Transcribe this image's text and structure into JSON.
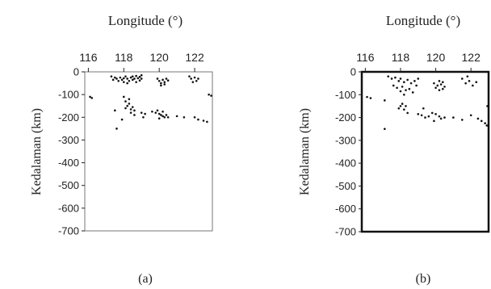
{
  "chart_data": [
    {
      "type": "scatter",
      "panel_label": "(a)",
      "xlabel": "Longitude (°)",
      "ylabel": "Kedalaman (km)",
      "xlim": [
        115.8,
        123.0
      ],
      "ylim": [
        -700,
        0
      ],
      "xticks": [
        116,
        118,
        120,
        122
      ],
      "yticks": [
        0,
        -100,
        -200,
        -300,
        -400,
        -500,
        -600,
        -700
      ],
      "x_axis_position": "top",
      "frame": "gray",
      "grid": false,
      "points": [
        [
          117.3,
          -20
        ],
        [
          117.5,
          -25
        ],
        [
          117.6,
          -30
        ],
        [
          117.8,
          -25
        ],
        [
          117.9,
          -35
        ],
        [
          118.0,
          -28
        ],
        [
          118.1,
          -20
        ],
        [
          118.2,
          -30
        ],
        [
          118.3,
          -40
        ],
        [
          118.4,
          -25
        ],
        [
          118.5,
          -35
        ],
        [
          118.6,
          -30
        ],
        [
          118.7,
          -45
        ],
        [
          118.8,
          -28
        ],
        [
          118.9,
          -38
        ],
        [
          119.0,
          -30
        ],
        [
          117.4,
          -35
        ],
        [
          117.7,
          -40
        ],
        [
          118.0,
          -45
        ],
        [
          118.2,
          -50
        ],
        [
          118.5,
          -20
        ],
        [
          118.7,
          -18
        ],
        [
          118.9,
          -22
        ],
        [
          119.0,
          -15
        ],
        [
          119.9,
          -30
        ],
        [
          120.0,
          -40
        ],
        [
          120.1,
          -50
        ],
        [
          120.2,
          -35
        ],
        [
          120.3,
          -45
        ],
        [
          120.4,
          -30
        ],
        [
          120.5,
          -38
        ],
        [
          120.1,
          -60
        ],
        [
          120.3,
          -55
        ],
        [
          121.7,
          -20
        ],
        [
          121.8,
          -30
        ],
        [
          122.0,
          -25
        ],
        [
          122.1,
          -40
        ],
        [
          122.2,
          -30
        ],
        [
          121.9,
          -45
        ],
        [
          116.1,
          -110
        ],
        [
          116.2,
          -115
        ],
        [
          117.5,
          -170
        ],
        [
          118.0,
          -110
        ],
        [
          118.1,
          -130
        ],
        [
          118.2,
          -150
        ],
        [
          118.3,
          -140
        ],
        [
          118.4,
          -165
        ],
        [
          118.5,
          -155
        ],
        [
          118.6,
          -170
        ],
        [
          118.3,
          -120
        ],
        [
          118.1,
          -160
        ],
        [
          118.4,
          -180
        ],
        [
          118.6,
          -190
        ],
        [
          119.0,
          -180
        ],
        [
          119.1,
          -200
        ],
        [
          119.2,
          -185
        ],
        [
          119.6,
          -175
        ],
        [
          119.8,
          -180
        ],
        [
          120.0,
          -185
        ],
        [
          120.1,
          -190
        ],
        [
          120.2,
          -195
        ],
        [
          120.3,
          -200
        ],
        [
          120.4,
          -190
        ],
        [
          120.5,
          -200
        ],
        [
          119.9,
          -170
        ],
        [
          120.2,
          -175
        ],
        [
          120.0,
          -205
        ],
        [
          121.0,
          -195
        ],
        [
          121.4,
          -200
        ],
        [
          122.0,
          -200
        ],
        [
          122.2,
          -210
        ],
        [
          122.5,
          -215
        ],
        [
          122.7,
          -220
        ],
        [
          122.8,
          -100
        ],
        [
          123.0,
          -105
        ],
        [
          117.6,
          -250
        ],
        [
          117.9,
          -210
        ]
      ]
    },
    {
      "type": "scatter",
      "panel_label": "(b)",
      "xlabel": "Longitude (°)",
      "ylabel": "Kedalaman (km)",
      "xlim": [
        115.8,
        123.0
      ],
      "ylim": [
        -700,
        0
      ],
      "xticks": [
        116,
        118,
        120,
        122
      ],
      "yticks": [
        0,
        -100,
        -200,
        -300,
        -400,
        -500,
        -600,
        -700
      ],
      "x_axis_position": "top",
      "frame": "black",
      "grid": false,
      "points": [
        [
          117.3,
          -20
        ],
        [
          117.5,
          -30
        ],
        [
          117.7,
          -25
        ],
        [
          117.9,
          -40
        ],
        [
          118.0,
          -30
        ],
        [
          118.2,
          -45
        ],
        [
          118.4,
          -35
        ],
        [
          118.6,
          -50
        ],
        [
          118.8,
          -40
        ],
        [
          119.0,
          -30
        ],
        [
          117.6,
          -60
        ],
        [
          117.8,
          -70
        ],
        [
          118.1,
          -65
        ],
        [
          118.3,
          -80
        ],
        [
          118.5,
          -75
        ],
        [
          118.7,
          -90
        ],
        [
          118.9,
          -60
        ],
        [
          118.2,
          -100
        ],
        [
          118.0,
          -85
        ],
        [
          119.9,
          -50
        ],
        [
          120.0,
          -70
        ],
        [
          120.1,
          -60
        ],
        [
          120.2,
          -80
        ],
        [
          120.3,
          -55
        ],
        [
          120.4,
          -75
        ],
        [
          120.5,
          -65
        ],
        [
          120.2,
          -40
        ],
        [
          120.4,
          -45
        ],
        [
          121.5,
          -30
        ],
        [
          121.7,
          -50
        ],
        [
          121.9,
          -40
        ],
        [
          122.1,
          -60
        ],
        [
          122.3,
          -45
        ],
        [
          121.8,
          -20
        ],
        [
          116.1,
          -110
        ],
        [
          116.3,
          -115
        ],
        [
          117.1,
          -125
        ],
        [
          117.9,
          -160
        ],
        [
          118.0,
          -150
        ],
        [
          118.1,
          -140
        ],
        [
          118.2,
          -165
        ],
        [
          118.3,
          -150
        ],
        [
          118.4,
          -180
        ],
        [
          119.0,
          -185
        ],
        [
          119.2,
          -190
        ],
        [
          119.4,
          -200
        ],
        [
          119.6,
          -195
        ],
        [
          119.8,
          -180
        ],
        [
          120.0,
          -185
        ],
        [
          120.2,
          -195
        ],
        [
          120.3,
          -205
        ],
        [
          119.9,
          -215
        ],
        [
          120.5,
          -200
        ],
        [
          121.0,
          -200
        ],
        [
          121.5,
          -210
        ],
        [
          122.0,
          -190
        ],
        [
          122.4,
          -205
        ],
        [
          122.6,
          -215
        ],
        [
          122.8,
          -225
        ],
        [
          122.9,
          -235
        ],
        [
          123.0,
          -150
        ],
        [
          117.1,
          -250
        ],
        [
          119.3,
          -160
        ]
      ]
    }
  ]
}
